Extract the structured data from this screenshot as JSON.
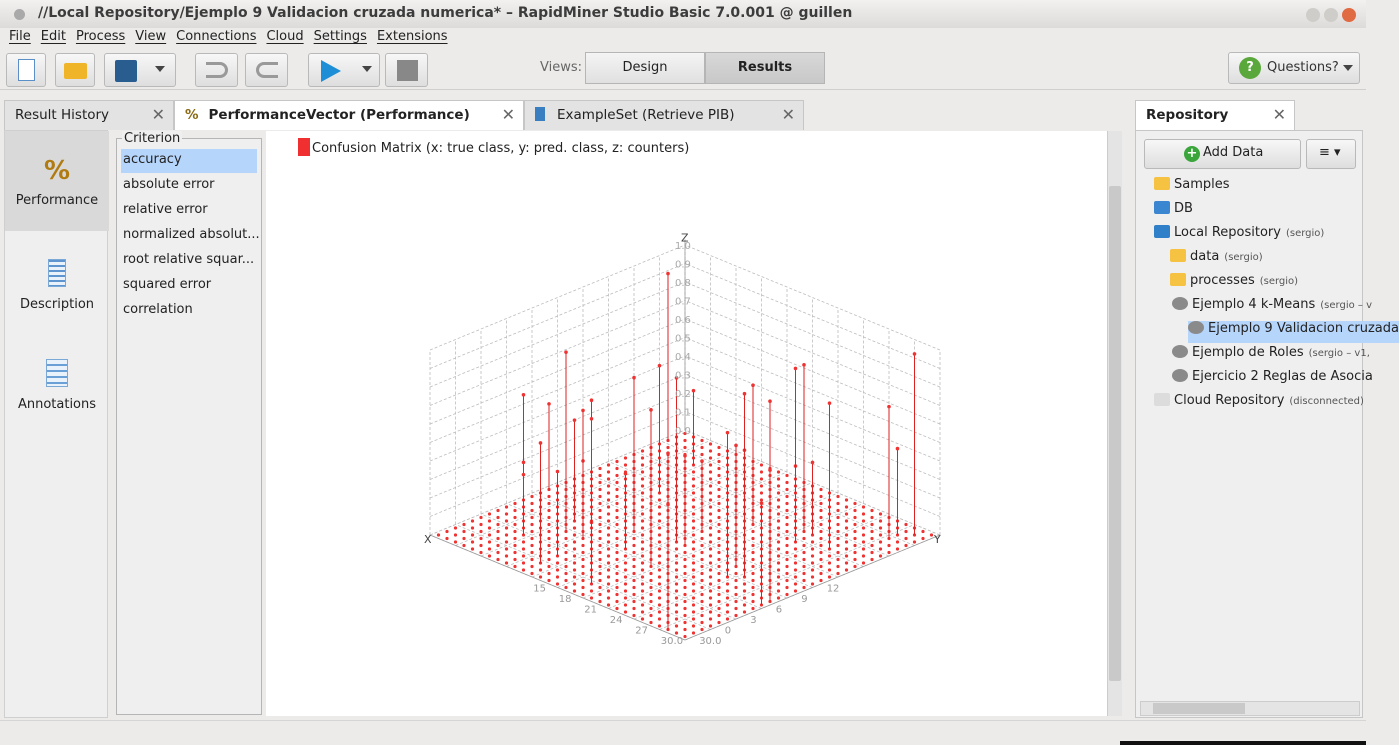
{
  "window": {
    "title": "//Local Repository/Ejemplo 9 Validacion cruzada numerica* – RapidMiner Studio Basic 7.0.001 @ guillen"
  },
  "menu": [
    "File",
    "Edit",
    "Process",
    "View",
    "Connections",
    "Cloud",
    "Settings",
    "Extensions"
  ],
  "toolbar": {
    "views_label": "Views:",
    "views": [
      "Design",
      "Results"
    ],
    "help": "Questions?"
  },
  "tabs": [
    "Result History",
    "PerformanceVector (Performance)",
    "ExampleSet (Retrieve PIB)"
  ],
  "sidebar": [
    "Performance",
    "Description",
    "Annotations"
  ],
  "criterion": {
    "title": "Criterion",
    "items": [
      "accuracy",
      "absolute error",
      "relative error",
      "normalized absolut...",
      "root relative squar...",
      "squared error",
      "correlation"
    ]
  },
  "plot": {
    "legend": "Confusion Matrix (x: true class,  y: pred. class,  z: counters)",
    "axes": {
      "x": "X",
      "y": "Y",
      "z": "Z"
    },
    "z_ticks": [
      "0.0",
      "0.1",
      "0.2",
      "0.3",
      "0.4",
      "0.5",
      "0.6",
      "0.7",
      "0.8",
      "0.9",
      "1.0"
    ],
    "x_ticks": [
      "30.0",
      "27",
      "24",
      "21",
      "18",
      "15"
    ],
    "y_ticks": [
      "30.0",
      "0",
      "3",
      "6",
      "9",
      "12"
    ]
  },
  "repository": {
    "tab": "Repository",
    "add_data": "Add Data",
    "tree": [
      {
        "label": "Samples"
      },
      {
        "label": "DB"
      },
      {
        "label": "Local Repository",
        "note": "(sergio)"
      },
      {
        "label": "data",
        "note": "(sergio)"
      },
      {
        "label": "processes",
        "note": "(sergio)"
      },
      {
        "label": "Ejemplo 4 k-Means",
        "note": "(sergio – v"
      },
      {
        "label": "Ejemplo 9 Validacion cruzada"
      },
      {
        "label": "Ejemplo de Roles",
        "note": "(sergio – v1,"
      },
      {
        "label": "Ejercicio 2 Reglas de Asocia"
      },
      {
        "label": "Cloud Repository",
        "note": "(disconnected)"
      }
    ]
  }
}
